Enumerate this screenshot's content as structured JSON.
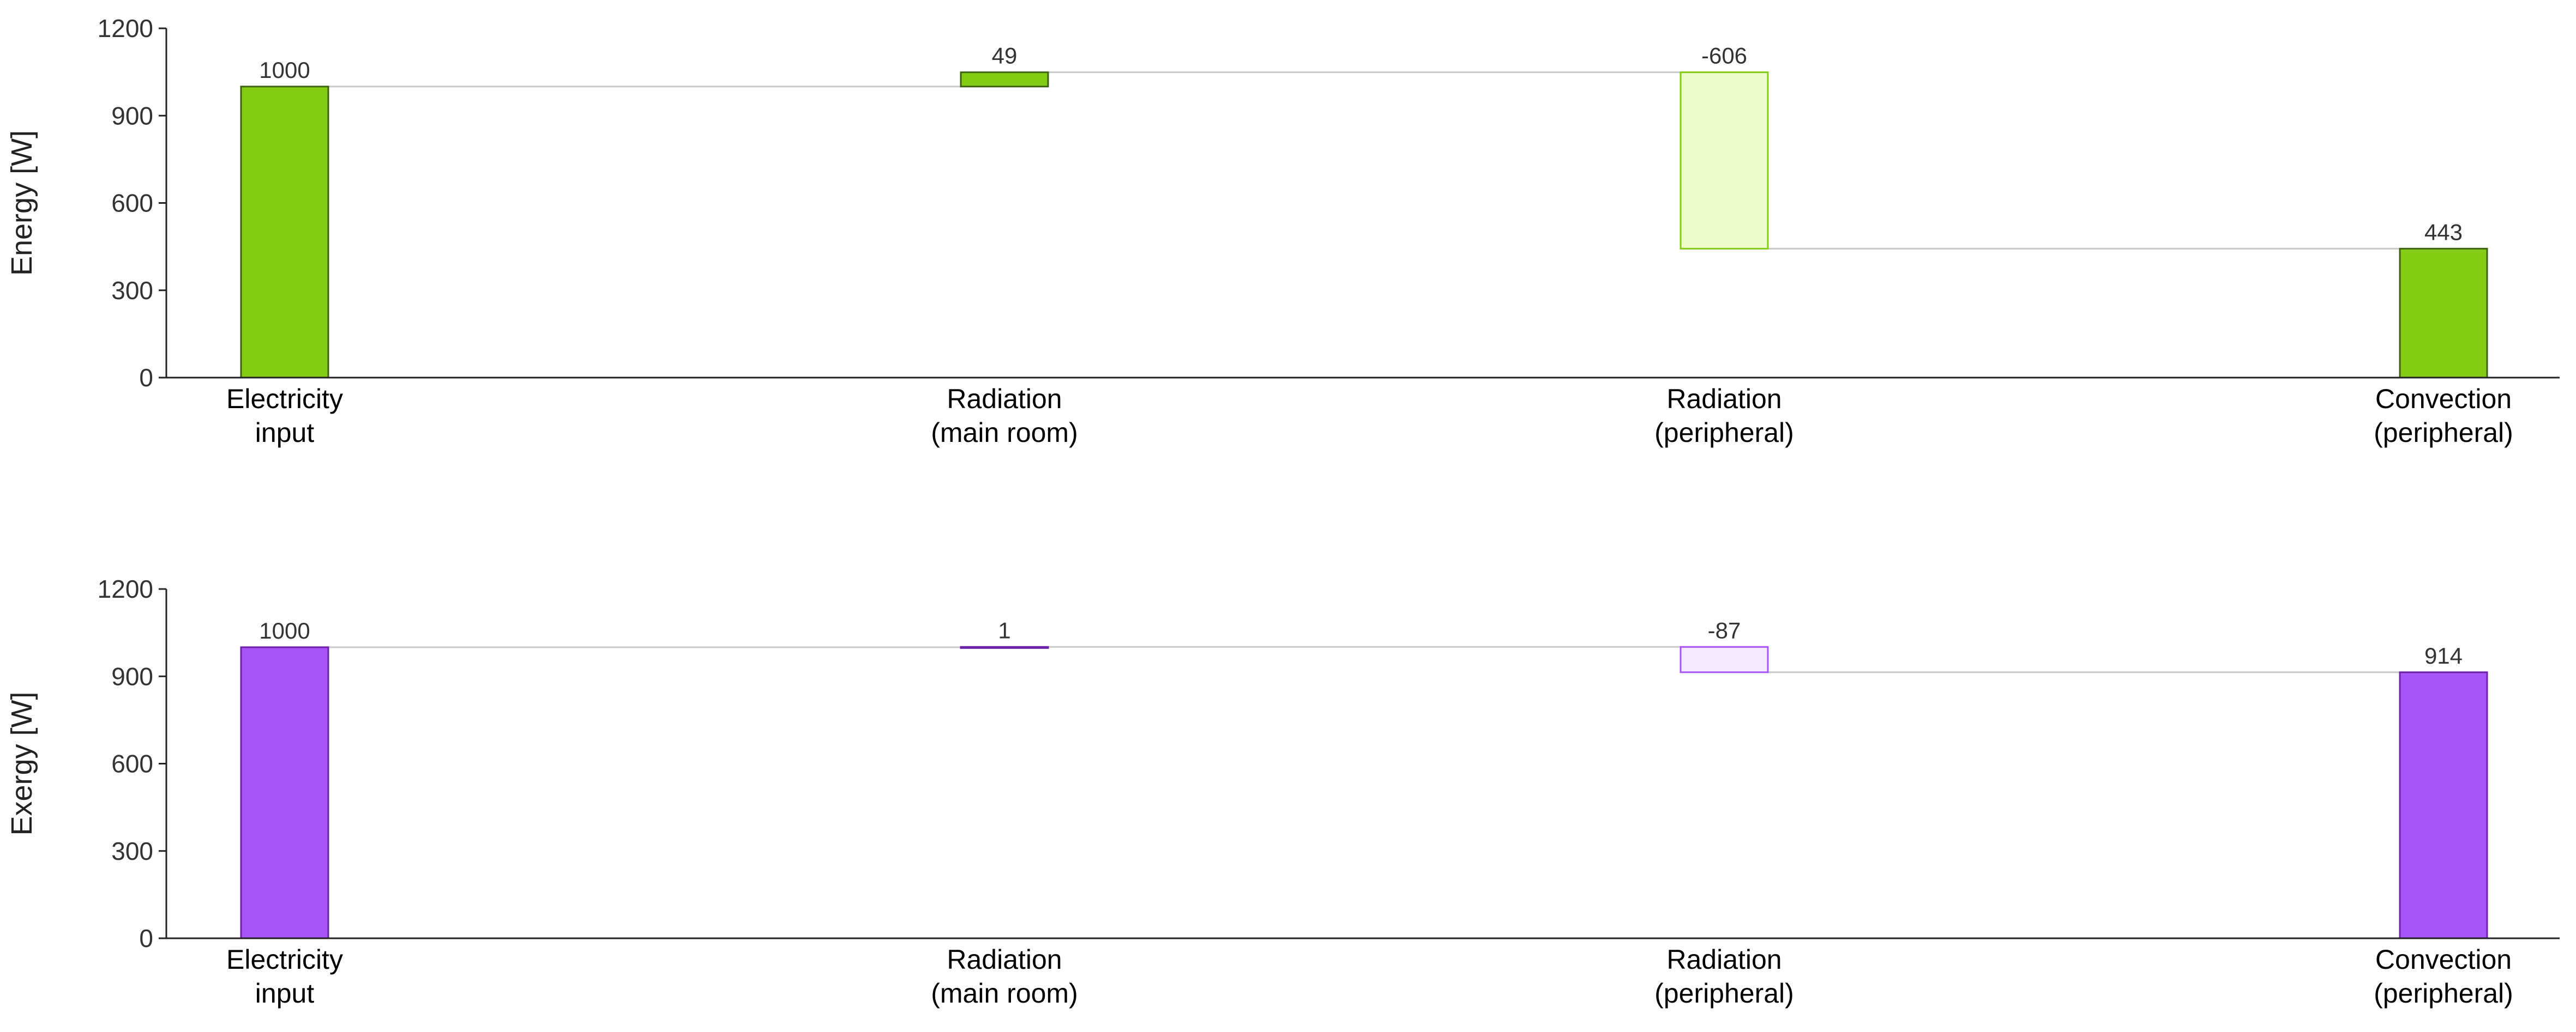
{
  "chart_data": [
    {
      "type": "waterfall",
      "title": "",
      "xlabel": "",
      "ylabel": "Energy [W]",
      "ylim": [
        0,
        1200
      ],
      "yticks": [
        0,
        300,
        600,
        900,
        1200
      ],
      "categories": [
        [
          "Electricity",
          "input"
        ],
        [
          "Radiation",
          "(main room)"
        ],
        [
          "Radiation",
          "(peripheral)"
        ],
        [
          "Convection",
          "(peripheral)"
        ]
      ],
      "values": [
        1000,
        49,
        -606,
        443
      ],
      "data_labels": [
        "1000",
        "49",
        "-606",
        "443"
      ],
      "kinds": [
        "total",
        "delta",
        "delta",
        "total"
      ],
      "colors": {
        "total_fill": "#84cc16",
        "total_stroke": "#3f6212",
        "increase_fill": "#84cc16",
        "increase_stroke": "#3f6212",
        "decrease_fill": "#ecfccb",
        "decrease_stroke": "#84cc16",
        "connector": "#c8c8c8"
      },
      "grid": false
    },
    {
      "type": "waterfall",
      "title": "",
      "xlabel": "",
      "ylabel": "Exergy [W]",
      "ylim": [
        0,
        1200
      ],
      "yticks": [
        0,
        300,
        600,
        900,
        1200
      ],
      "categories": [
        [
          "Electricity",
          "input"
        ],
        [
          "Radiation",
          "(main room)"
        ],
        [
          "Radiation",
          "(peripheral)"
        ],
        [
          "Convection",
          "(peripheral)"
        ]
      ],
      "values": [
        1000,
        1,
        -87,
        914
      ],
      "data_labels": [
        "1000",
        "1",
        "-87",
        "914"
      ],
      "kinds": [
        "total",
        "delta",
        "delta",
        "total"
      ],
      "colors": {
        "total_fill": "#a855f7",
        "total_stroke": "#6b21a8",
        "increase_fill": "#a855f7",
        "increase_stroke": "#6b21a8",
        "decrease_fill": "#f3e8ff",
        "decrease_stroke": "#a855f7",
        "connector": "#c8c8c8"
      },
      "grid": false
    }
  ]
}
